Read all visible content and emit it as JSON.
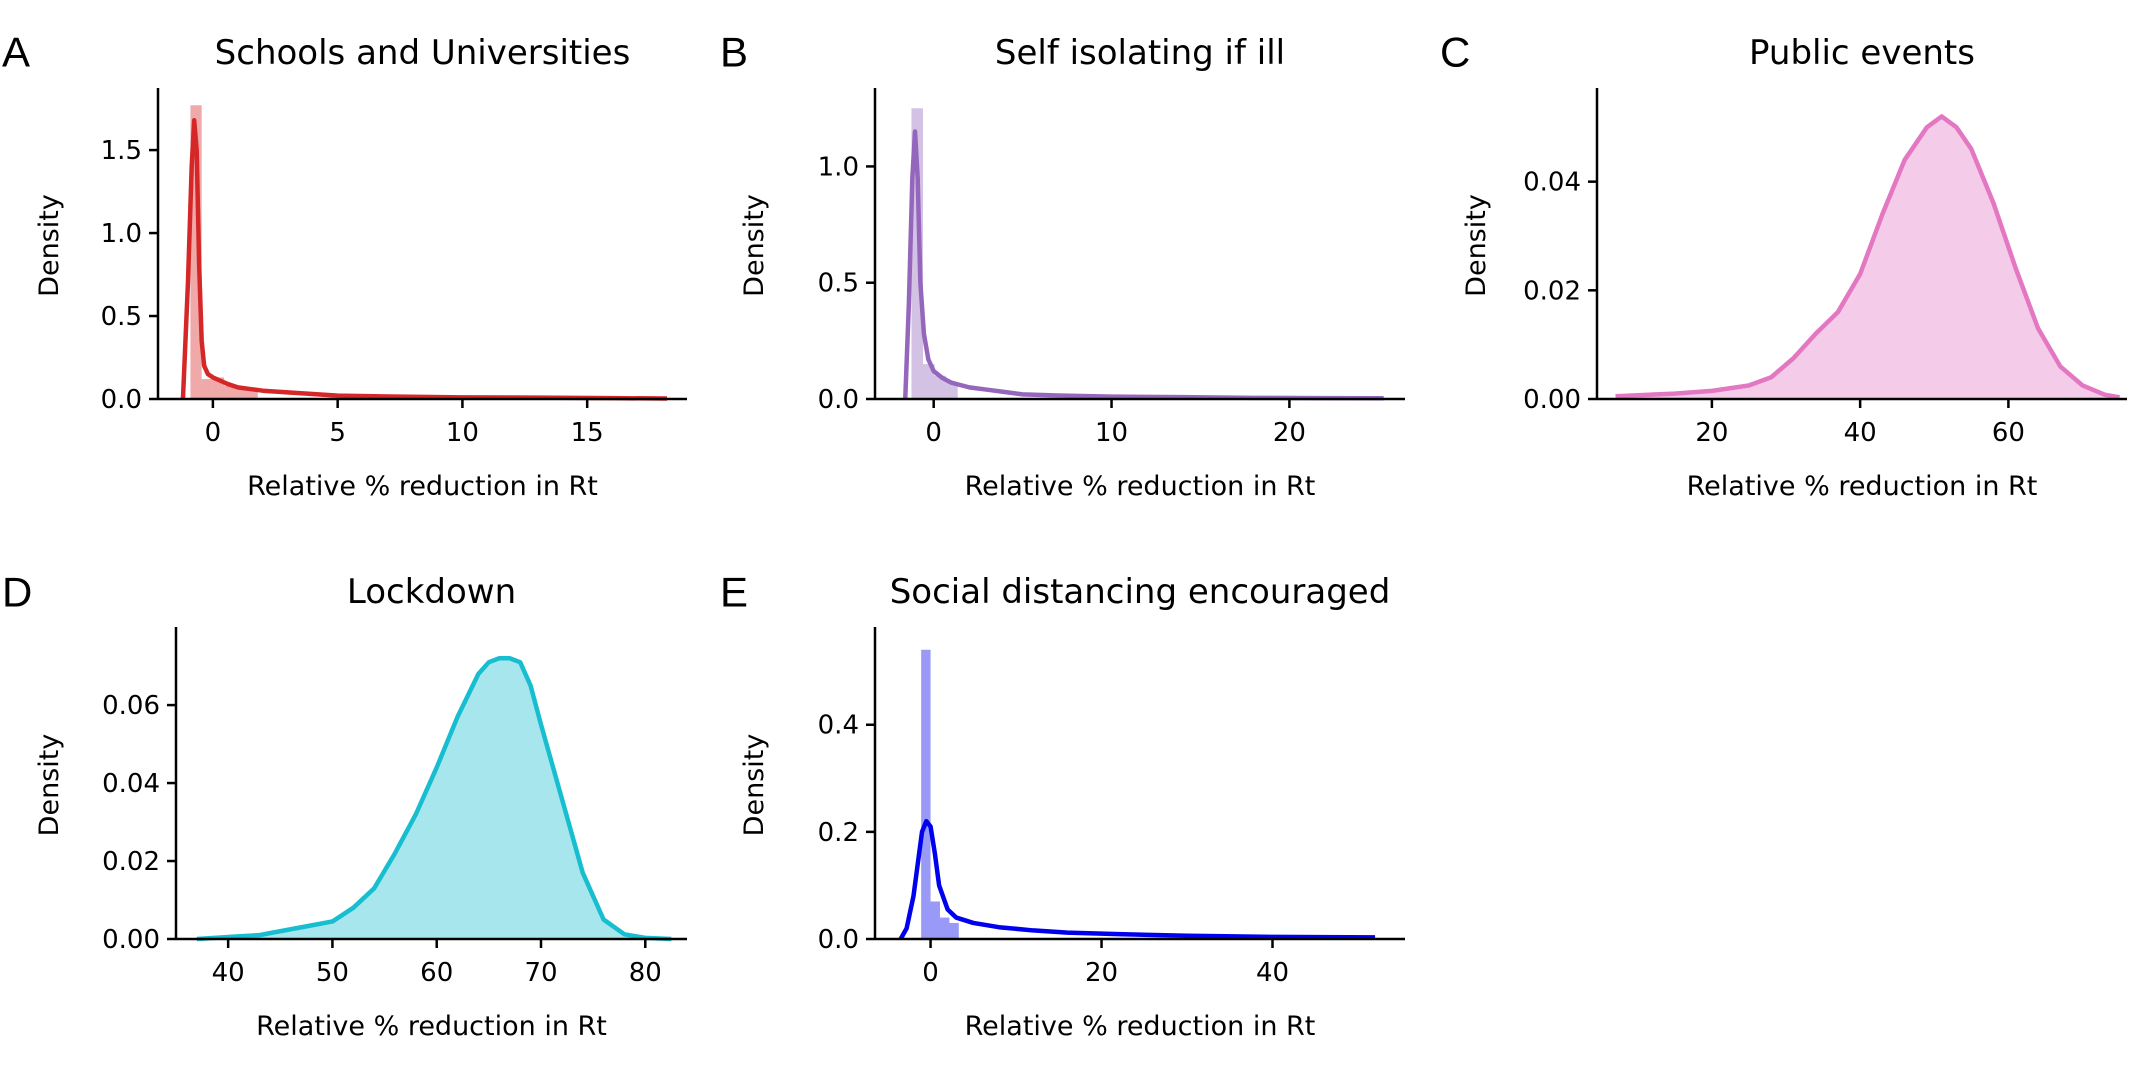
{
  "chart_data": [
    {
      "type": "area",
      "letter": "A",
      "title": "Schools and Universities",
      "xlabel": "Relative % reduction in Rt",
      "ylabel": "Density",
      "color": "#d62728",
      "xlim": [
        -2.2,
        19
      ],
      "ylim": [
        0,
        1.85
      ],
      "xticks": [
        0,
        5,
        10,
        15
      ],
      "yticks": [
        0.0,
        0.5,
        1.0,
        1.5
      ],
      "ytick_labels": [
        "0.0",
        "0.5",
        "1.0",
        "1.5"
      ],
      "hist": {
        "bin_width": 0.45,
        "bins": [
          [
            -0.9,
            1.77
          ],
          [
            -0.45,
            0.12
          ],
          [
            0,
            0.13
          ],
          [
            0.45,
            0.08
          ],
          [
            0.9,
            0.07
          ],
          [
            1.35,
            0.06
          ]
        ]
      },
      "kde": {
        "x": [
          -1.2,
          -1.0,
          -0.85,
          -0.75,
          -0.65,
          -0.55,
          -0.45,
          -0.35,
          -0.2,
          0.0,
          0.3,
          0.6,
          1.0,
          1.5,
          2.0,
          3.0,
          4.0,
          5.0,
          7.0,
          10.0,
          13.0,
          16.0,
          18.2
        ],
        "y": [
          0.0,
          0.7,
          1.4,
          1.68,
          1.5,
          0.8,
          0.35,
          0.2,
          0.15,
          0.13,
          0.11,
          0.09,
          0.07,
          0.06,
          0.05,
          0.04,
          0.03,
          0.02,
          0.015,
          0.01,
          0.008,
          0.005,
          0.003
        ]
      }
    },
    {
      "type": "area",
      "letter": "B",
      "title": "Self isolating if ill",
      "xlabel": "Relative % reduction in Rt",
      "ylabel": "Density",
      "color": "#9467bd",
      "xlim": [
        -3.3,
        26.5
      ],
      "ylim": [
        0,
        1.32
      ],
      "xticks": [
        0,
        10,
        20
      ],
      "yticks": [
        0.0,
        0.5,
        1.0
      ],
      "ytick_labels": [
        "0.0",
        "0.5",
        "1.0"
      ],
      "hist": {
        "bin_width": 0.65,
        "bins": [
          [
            -1.25,
            1.25
          ],
          [
            -0.6,
            0.15
          ],
          [
            0.05,
            0.1
          ],
          [
            0.7,
            0.07
          ]
        ]
      },
      "kde": {
        "x": [
          -1.6,
          -1.4,
          -1.2,
          -1.05,
          -0.9,
          -0.75,
          -0.55,
          -0.3,
          0.0,
          0.5,
          1.0,
          2.0,
          3.0,
          4.0,
          5.0,
          7.0,
          10.0,
          14.0,
          18.0,
          22.0,
          25.3
        ],
        "y": [
          0.0,
          0.4,
          0.95,
          1.15,
          0.95,
          0.5,
          0.28,
          0.17,
          0.12,
          0.09,
          0.07,
          0.05,
          0.04,
          0.03,
          0.02,
          0.015,
          0.01,
          0.008,
          0.005,
          0.004,
          0.003
        ]
      }
    },
    {
      "type": "area",
      "letter": "C",
      "title": "Public events",
      "xlabel": "Relative % reduction in Rt",
      "ylabel": "Density",
      "color": "#e377c2",
      "xlim": [
        4.5,
        76
      ],
      "ylim": [
        0,
        0.0565
      ],
      "xticks": [
        20,
        40,
        60
      ],
      "yticks": [
        0.0,
        0.02,
        0.04
      ],
      "ytick_labels": [
        "0.00",
        "0.02",
        "0.04"
      ],
      "kde": {
        "x": [
          7,
          10,
          15,
          20,
          25,
          28,
          31,
          34,
          37,
          40,
          43,
          46,
          49,
          51,
          53,
          55,
          58,
          61,
          64,
          67,
          70,
          73,
          75
        ],
        "y": [
          0.0005,
          0.0007,
          0.001,
          0.0015,
          0.0025,
          0.004,
          0.0075,
          0.012,
          0.016,
          0.023,
          0.034,
          0.044,
          0.05,
          0.052,
          0.05,
          0.046,
          0.036,
          0.024,
          0.013,
          0.006,
          0.0025,
          0.0008,
          0.0003
        ]
      }
    },
    {
      "type": "area",
      "letter": "D",
      "title": "Lockdown",
      "xlabel": "Relative % reduction in Rt",
      "ylabel": "Density",
      "color": "#17becf",
      "xlim": [
        35,
        84
      ],
      "ylim": [
        0,
        0.079
      ],
      "xticks": [
        40,
        50,
        60,
        70,
        80
      ],
      "yticks": [
        0.0,
        0.02,
        0.04,
        0.06
      ],
      "ytick_labels": [
        "0.00",
        "0.02",
        "0.04",
        "0.06"
      ],
      "kde": {
        "x": [
          37,
          40,
          43,
          46,
          48,
          50,
          52,
          54,
          56,
          58,
          60,
          62,
          64,
          65,
          66,
          67,
          68,
          69,
          70,
          72,
          74,
          76,
          78,
          80,
          82.5
        ],
        "y": [
          0.0,
          0.0005,
          0.001,
          0.0025,
          0.0035,
          0.0045,
          0.008,
          0.013,
          0.022,
          0.032,
          0.044,
          0.057,
          0.068,
          0.071,
          0.072,
          0.072,
          0.071,
          0.065,
          0.055,
          0.036,
          0.017,
          0.005,
          0.0012,
          0.0003,
          0.0
        ]
      }
    },
    {
      "type": "area",
      "letter": "E",
      "title": "Social distancing encouraged",
      "xlabel": "Relative % reduction in Rt",
      "ylabel": "Density",
      "color": "#0000ee",
      "xlim": [
        -6.5,
        55.5
      ],
      "ylim": [
        0,
        0.575
      ],
      "xticks": [
        0,
        20,
        40
      ],
      "yticks": [
        0.0,
        0.2,
        0.4
      ],
      "ytick_labels": [
        "0.0",
        "0.2",
        "0.4"
      ],
      "hist": {
        "bin_width": 1.1,
        "bins": [
          [
            -1.1,
            0.54
          ],
          [
            0.0,
            0.07
          ],
          [
            1.1,
            0.04
          ],
          [
            2.2,
            0.03
          ]
        ]
      },
      "kde": {
        "x": [
          -3.5,
          -2.8,
          -2.0,
          -1.5,
          -1.0,
          -0.5,
          0.0,
          0.5,
          1.0,
          2.0,
          3.0,
          5.0,
          8.0,
          12.0,
          16.0,
          22.0,
          30.0,
          40.0,
          52.0
        ],
        "y": [
          0.0,
          0.02,
          0.08,
          0.14,
          0.2,
          0.22,
          0.21,
          0.16,
          0.1,
          0.055,
          0.04,
          0.03,
          0.022,
          0.016,
          0.012,
          0.009,
          0.006,
          0.004,
          0.003
        ]
      }
    }
  ]
}
